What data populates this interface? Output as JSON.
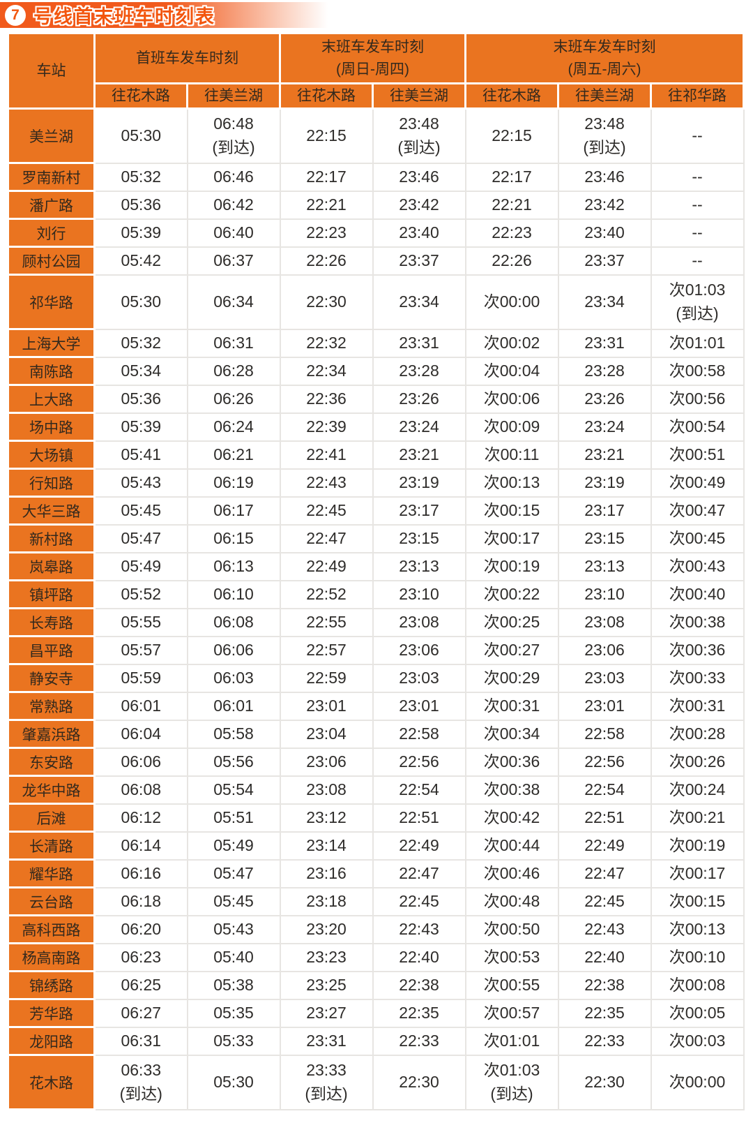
{
  "banner": {
    "line_number": "7",
    "title": "号线首末班车时刻表"
  },
  "table": {
    "station_header": "车站",
    "groups": [
      {
        "title": "首班车发车时刻",
        "subtitle": "",
        "columns": [
          "往花木路",
          "往美兰湖"
        ]
      },
      {
        "title": "末班车发车时刻",
        "subtitle": "(周日-周四)",
        "columns": [
          "往花木路",
          "往美兰湖"
        ]
      },
      {
        "title": "末班车发车时刻",
        "subtitle": "(周五-周六)",
        "columns": [
          "往花木路",
          "往美兰湖",
          "往祁华路"
        ]
      }
    ],
    "rows": [
      {
        "station": "美兰湖",
        "times": [
          "05:30",
          "06:48\n(到达)",
          "22:15",
          "23:48\n(到达)",
          "22:15",
          "23:48\n(到达)",
          "--"
        ]
      },
      {
        "station": "罗南新村",
        "times": [
          "05:32",
          "06:46",
          "22:17",
          "23:46",
          "22:17",
          "23:46",
          "--"
        ]
      },
      {
        "station": "潘广路",
        "times": [
          "05:36",
          "06:42",
          "22:21",
          "23:42",
          "22:21",
          "23:42",
          "--"
        ]
      },
      {
        "station": "刘行",
        "times": [
          "05:39",
          "06:40",
          "22:23",
          "23:40",
          "22:23",
          "23:40",
          "--"
        ]
      },
      {
        "station": "顾村公园",
        "times": [
          "05:42",
          "06:37",
          "22:26",
          "23:37",
          "22:26",
          "23:37",
          "--"
        ]
      },
      {
        "station": "祁华路",
        "times": [
          "05:30",
          "06:34",
          "22:30",
          "23:34",
          "次00:00",
          "23:34",
          "次01:03\n(到达)"
        ]
      },
      {
        "station": "上海大学",
        "times": [
          "05:32",
          "06:31",
          "22:32",
          "23:31",
          "次00:02",
          "23:31",
          "次01:01"
        ]
      },
      {
        "station": "南陈路",
        "times": [
          "05:34",
          "06:28",
          "22:34",
          "23:28",
          "次00:04",
          "23:28",
          "次00:58"
        ]
      },
      {
        "station": "上大路",
        "times": [
          "05:36",
          "06:26",
          "22:36",
          "23:26",
          "次00:06",
          "23:26",
          "次00:56"
        ]
      },
      {
        "station": "场中路",
        "times": [
          "05:39",
          "06:24",
          "22:39",
          "23:24",
          "次00:09",
          "23:24",
          "次00:54"
        ]
      },
      {
        "station": "大场镇",
        "times": [
          "05:41",
          "06:21",
          "22:41",
          "23:21",
          "次00:11",
          "23:21",
          "次00:51"
        ]
      },
      {
        "station": "行知路",
        "times": [
          "05:43",
          "06:19",
          "22:43",
          "23:19",
          "次00:13",
          "23:19",
          "次00:49"
        ]
      },
      {
        "station": "大华三路",
        "times": [
          "05:45",
          "06:17",
          "22:45",
          "23:17",
          "次00:15",
          "23:17",
          "次00:47"
        ]
      },
      {
        "station": "新村路",
        "times": [
          "05:47",
          "06:15",
          "22:47",
          "23:15",
          "次00:17",
          "23:15",
          "次00:45"
        ]
      },
      {
        "station": "岚皋路",
        "times": [
          "05:49",
          "06:13",
          "22:49",
          "23:13",
          "次00:19",
          "23:13",
          "次00:43"
        ]
      },
      {
        "station": "镇坪路",
        "times": [
          "05:52",
          "06:10",
          "22:52",
          "23:10",
          "次00:22",
          "23:10",
          "次00:40"
        ]
      },
      {
        "station": "长寿路",
        "times": [
          "05:55",
          "06:08",
          "22:55",
          "23:08",
          "次00:25",
          "23:08",
          "次00:38"
        ]
      },
      {
        "station": "昌平路",
        "times": [
          "05:57",
          "06:06",
          "22:57",
          "23:06",
          "次00:27",
          "23:06",
          "次00:36"
        ]
      },
      {
        "station": "静安寺",
        "times": [
          "05:59",
          "06:03",
          "22:59",
          "23:03",
          "次00:29",
          "23:03",
          "次00:33"
        ]
      },
      {
        "station": "常熟路",
        "times": [
          "06:01",
          "06:01",
          "23:01",
          "23:01",
          "次00:31",
          "23:01",
          "次00:31"
        ]
      },
      {
        "station": "肇嘉浜路",
        "times": [
          "06:04",
          "05:58",
          "23:04",
          "22:58",
          "次00:34",
          "22:58",
          "次00:28"
        ]
      },
      {
        "station": "东安路",
        "times": [
          "06:06",
          "05:56",
          "23:06",
          "22:56",
          "次00:36",
          "22:56",
          "次00:26"
        ]
      },
      {
        "station": "龙华中路",
        "times": [
          "06:08",
          "05:54",
          "23:08",
          "22:54",
          "次00:38",
          "22:54",
          "次00:24"
        ]
      },
      {
        "station": "后滩",
        "times": [
          "06:12",
          "05:51",
          "23:12",
          "22:51",
          "次00:42",
          "22:51",
          "次00:21"
        ]
      },
      {
        "station": "长清路",
        "times": [
          "06:14",
          "05:49",
          "23:14",
          "22:49",
          "次00:44",
          "22:49",
          "次00:19"
        ]
      },
      {
        "station": "耀华路",
        "times": [
          "06:16",
          "05:47",
          "23:16",
          "22:47",
          "次00:46",
          "22:47",
          "次00:17"
        ]
      },
      {
        "station": "云台路",
        "times": [
          "06:18",
          "05:45",
          "23:18",
          "22:45",
          "次00:48",
          "22:45",
          "次00:15"
        ]
      },
      {
        "station": "高科西路",
        "times": [
          "06:20",
          "05:43",
          "23:20",
          "22:43",
          "次00:50",
          "22:43",
          "次00:13"
        ]
      },
      {
        "station": "杨高南路",
        "times": [
          "06:23",
          "05:40",
          "23:23",
          "22:40",
          "次00:53",
          "22:40",
          "次00:10"
        ]
      },
      {
        "station": "锦绣路",
        "times": [
          "06:25",
          "05:38",
          "23:25",
          "22:38",
          "次00:55",
          "22:38",
          "次00:08"
        ]
      },
      {
        "station": "芳华路",
        "times": [
          "06:27",
          "05:35",
          "23:27",
          "22:35",
          "次00:57",
          "22:35",
          "次00:05"
        ]
      },
      {
        "station": "龙阳路",
        "times": [
          "06:31",
          "05:33",
          "23:31",
          "22:33",
          "次01:01",
          "22:33",
          "次00:03"
        ]
      },
      {
        "station": "花木路",
        "times": [
          "06:33\n(到达)",
          "05:30",
          "23:33\n(到达)",
          "22:30",
          "次01:03\n(到达)",
          "22:30",
          "次00:00"
        ]
      }
    ]
  },
  "colors": {
    "table_orange": "#EA7420",
    "banner_orange": "#F15A1C",
    "title_text": "#F3560E",
    "dark_text": "#33291D",
    "time_text": "#2E2C2A",
    "cell_border": "#E7E5E2"
  }
}
